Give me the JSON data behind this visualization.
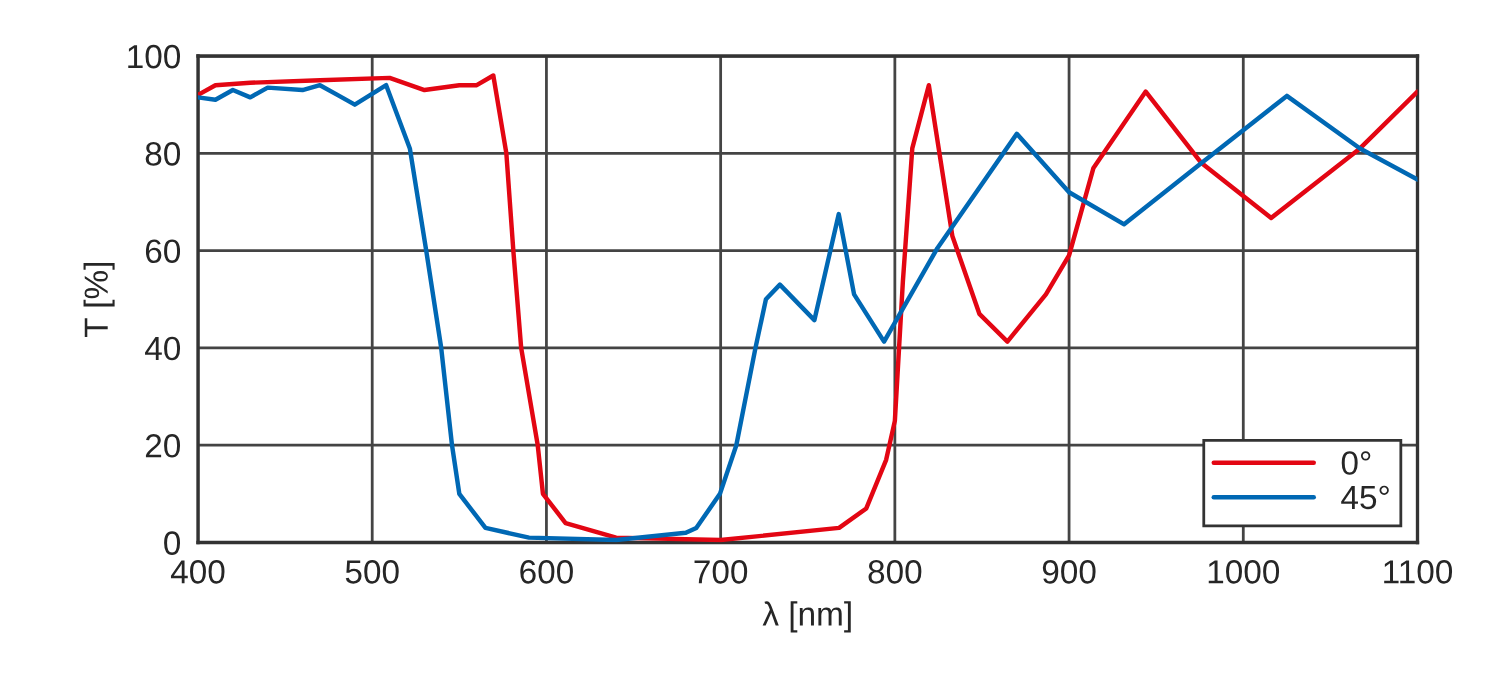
{
  "chart_data": {
    "type": "line",
    "xlabel": "λ [nm]",
    "ylabel": "T [%]",
    "xlim": [
      400,
      1100
    ],
    "ylim": [
      0,
      100
    ],
    "xticks": [
      400,
      500,
      600,
      700,
      800,
      900,
      1000,
      1100
    ],
    "yticks": [
      0,
      20,
      40,
      60,
      80,
      100
    ],
    "grid": true,
    "legend": "bottom right",
    "marker": "none",
    "line_style": "solid",
    "series": [
      {
        "name": "0°",
        "color": "#e30613",
        "x": [
          400,
          410,
          430,
          470,
          510,
          530,
          550,
          560,
          569.5,
          577,
          581,
          585.5,
          595,
          598,
          611,
          640,
          700,
          768,
          783.6,
          795,
          800,
          804.6,
          810,
          819.5,
          833,
          848.5,
          864.6,
          886.7,
          900,
          914,
          944,
          976,
          1016,
          1067,
          1100
        ],
        "values": [
          92,
          94,
          94.5,
          95,
          95.5,
          93,
          94,
          94,
          96,
          80,
          60,
          40,
          20,
          10,
          4,
          1,
          0.5,
          3,
          7,
          17,
          25,
          53.6,
          81,
          94,
          63,
          47,
          41.3,
          51,
          59,
          77,
          92.7,
          78,
          66.7,
          81,
          92.7
        ]
      },
      {
        "name": "45°",
        "color": "#0068b4",
        "x": [
          400,
          410,
          420,
          430,
          440,
          460,
          470,
          480,
          490,
          508,
          521.6,
          531,
          539.6,
          545.8,
          550,
          565,
          590,
          640,
          680,
          686,
          699.6,
          709,
          720,
          726,
          734,
          753.8,
          767.8,
          776.6,
          793.8,
          824.4,
          870,
          900,
          931.6,
          976,
          1025,
          1067,
          1100
        ],
        "values": [
          91.5,
          91,
          93,
          91.5,
          93.5,
          93,
          94,
          92,
          90,
          94,
          81,
          60,
          40,
          20,
          10,
          3,
          1,
          0.5,
          2,
          3,
          10,
          20,
          40,
          50,
          53,
          45.7,
          67.5,
          51,
          41.3,
          60.5,
          84,
          72,
          65.4,
          78,
          91.8,
          81,
          74.6
        ]
      }
    ]
  }
}
